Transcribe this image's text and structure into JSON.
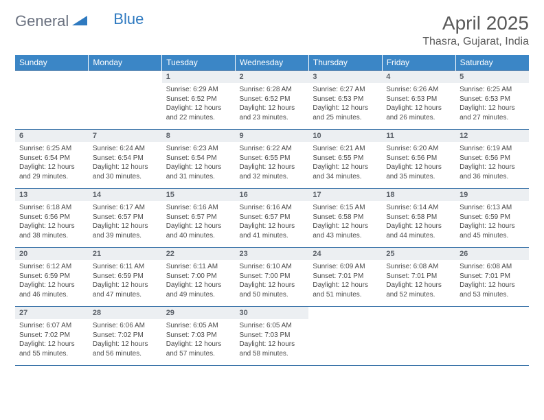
{
  "logo": {
    "general": "General",
    "blue": "Blue"
  },
  "title": "April 2025",
  "location": "Thasra, Gujarat, India",
  "colors": {
    "header_bg": "#3b86c6",
    "header_text": "#ffffff",
    "day_num_bg": "#eceff2",
    "day_num_text": "#5a6068",
    "body_text": "#4a4a4a",
    "grid_line": "#2d6aa3",
    "logo_gray": "#6b7280",
    "logo_blue": "#2f7ac0"
  },
  "weekdays": [
    "Sunday",
    "Monday",
    "Tuesday",
    "Wednesday",
    "Thursday",
    "Friday",
    "Saturday"
  ],
  "weeks": [
    [
      null,
      null,
      {
        "n": "1",
        "sr": "6:29 AM",
        "ss": "6:52 PM",
        "dl": "12 hours and 22 minutes."
      },
      {
        "n": "2",
        "sr": "6:28 AM",
        "ss": "6:52 PM",
        "dl": "12 hours and 23 minutes."
      },
      {
        "n": "3",
        "sr": "6:27 AM",
        "ss": "6:53 PM",
        "dl": "12 hours and 25 minutes."
      },
      {
        "n": "4",
        "sr": "6:26 AM",
        "ss": "6:53 PM",
        "dl": "12 hours and 26 minutes."
      },
      {
        "n": "5",
        "sr": "6:25 AM",
        "ss": "6:53 PM",
        "dl": "12 hours and 27 minutes."
      }
    ],
    [
      {
        "n": "6",
        "sr": "6:25 AM",
        "ss": "6:54 PM",
        "dl": "12 hours and 29 minutes."
      },
      {
        "n": "7",
        "sr": "6:24 AM",
        "ss": "6:54 PM",
        "dl": "12 hours and 30 minutes."
      },
      {
        "n": "8",
        "sr": "6:23 AM",
        "ss": "6:54 PM",
        "dl": "12 hours and 31 minutes."
      },
      {
        "n": "9",
        "sr": "6:22 AM",
        "ss": "6:55 PM",
        "dl": "12 hours and 32 minutes."
      },
      {
        "n": "10",
        "sr": "6:21 AM",
        "ss": "6:55 PM",
        "dl": "12 hours and 34 minutes."
      },
      {
        "n": "11",
        "sr": "6:20 AM",
        "ss": "6:56 PM",
        "dl": "12 hours and 35 minutes."
      },
      {
        "n": "12",
        "sr": "6:19 AM",
        "ss": "6:56 PM",
        "dl": "12 hours and 36 minutes."
      }
    ],
    [
      {
        "n": "13",
        "sr": "6:18 AM",
        "ss": "6:56 PM",
        "dl": "12 hours and 38 minutes."
      },
      {
        "n": "14",
        "sr": "6:17 AM",
        "ss": "6:57 PM",
        "dl": "12 hours and 39 minutes."
      },
      {
        "n": "15",
        "sr": "6:16 AM",
        "ss": "6:57 PM",
        "dl": "12 hours and 40 minutes."
      },
      {
        "n": "16",
        "sr": "6:16 AM",
        "ss": "6:57 PM",
        "dl": "12 hours and 41 minutes."
      },
      {
        "n": "17",
        "sr": "6:15 AM",
        "ss": "6:58 PM",
        "dl": "12 hours and 43 minutes."
      },
      {
        "n": "18",
        "sr": "6:14 AM",
        "ss": "6:58 PM",
        "dl": "12 hours and 44 minutes."
      },
      {
        "n": "19",
        "sr": "6:13 AM",
        "ss": "6:59 PM",
        "dl": "12 hours and 45 minutes."
      }
    ],
    [
      {
        "n": "20",
        "sr": "6:12 AM",
        "ss": "6:59 PM",
        "dl": "12 hours and 46 minutes."
      },
      {
        "n": "21",
        "sr": "6:11 AM",
        "ss": "6:59 PM",
        "dl": "12 hours and 47 minutes."
      },
      {
        "n": "22",
        "sr": "6:11 AM",
        "ss": "7:00 PM",
        "dl": "12 hours and 49 minutes."
      },
      {
        "n": "23",
        "sr": "6:10 AM",
        "ss": "7:00 PM",
        "dl": "12 hours and 50 minutes."
      },
      {
        "n": "24",
        "sr": "6:09 AM",
        "ss": "7:01 PM",
        "dl": "12 hours and 51 minutes."
      },
      {
        "n": "25",
        "sr": "6:08 AM",
        "ss": "7:01 PM",
        "dl": "12 hours and 52 minutes."
      },
      {
        "n": "26",
        "sr": "6:08 AM",
        "ss": "7:01 PM",
        "dl": "12 hours and 53 minutes."
      }
    ],
    [
      {
        "n": "27",
        "sr": "6:07 AM",
        "ss": "7:02 PM",
        "dl": "12 hours and 55 minutes."
      },
      {
        "n": "28",
        "sr": "6:06 AM",
        "ss": "7:02 PM",
        "dl": "12 hours and 56 minutes."
      },
      {
        "n": "29",
        "sr": "6:05 AM",
        "ss": "7:03 PM",
        "dl": "12 hours and 57 minutes."
      },
      {
        "n": "30",
        "sr": "6:05 AM",
        "ss": "7:03 PM",
        "dl": "12 hours and 58 minutes."
      },
      null,
      null,
      null
    ]
  ],
  "labels": {
    "sunrise": "Sunrise:",
    "sunset": "Sunset:",
    "daylight": "Daylight:"
  }
}
